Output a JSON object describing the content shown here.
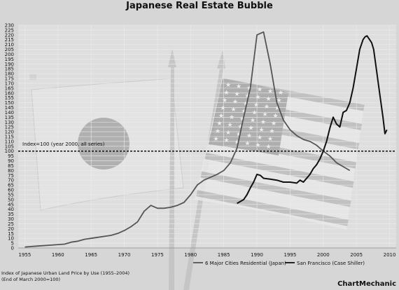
{
  "chart_data": {
    "type": "line",
    "title": "Japanese Real Estate Bubble",
    "xlim": [
      1954,
      2011
    ],
    "ylim": [
      0,
      230
    ],
    "x_ticks": [
      1955,
      1960,
      1965,
      1970,
      1975,
      1980,
      1985,
      1990,
      1995,
      2000,
      2005,
      2010
    ],
    "y_ticks": [
      0,
      5,
      10,
      15,
      20,
      25,
      30,
      35,
      40,
      45,
      50,
      55,
      60,
      65,
      70,
      75,
      80,
      85,
      90,
      95,
      100,
      105,
      110,
      115,
      120,
      125,
      130,
      135,
      140,
      145,
      150,
      155,
      160,
      165,
      170,
      175,
      180,
      185,
      190,
      195,
      200,
      205,
      210,
      215,
      220,
      225,
      230
    ],
    "grid": true,
    "reference_line": {
      "y": 100,
      "label": "Index=100 (year 2000, all series)"
    },
    "legend_position": "bottom",
    "series": [
      {
        "name": "6 Major Cities Residential (Japan)",
        "color": "#555555",
        "x": [
          1955,
          1957,
          1959,
          1961,
          1962,
          1963,
          1964,
          1965,
          1966,
          1967,
          1968,
          1969,
          1970,
          1971,
          1972,
          1973,
          1974,
          1975,
          1976,
          1977,
          1978,
          1979,
          1980,
          1981,
          1982,
          1983,
          1984,
          1985,
          1986,
          1987,
          1988,
          1989,
          1990,
          1991,
          1992,
          1993,
          1994,
          1995,
          1996,
          1997,
          1998,
          1999,
          2000,
          2001,
          2002,
          2003,
          2004
        ],
        "y": [
          1,
          2,
          3,
          4,
          6,
          7,
          9,
          10,
          11,
          12,
          13,
          15,
          18,
          22,
          27,
          38,
          44,
          41,
          41,
          42,
          44,
          47,
          55,
          65,
          70,
          73,
          76,
          80,
          88,
          103,
          135,
          165,
          220,
          223,
          190,
          150,
          132,
          122,
          116,
          112,
          110,
          106,
          100,
          95,
          88,
          84,
          80
        ]
      },
      {
        "name": "San Francisco (Case Shiller)",
        "color": "#111111",
        "x": [
          1987,
          1988,
          1988.5,
          1989,
          1989.5,
          1990,
          1990.5,
          1991,
          1992,
          1993,
          1994,
          1995,
          1996,
          1996.5,
          1997,
          1997.5,
          1998,
          1998.5,
          1999,
          1999.5,
          2000,
          2000.5,
          2001,
          2001.5,
          2002,
          2002.5,
          2003,
          2003.5,
          2004,
          2004.5,
          2005,
          2005.5,
          2006,
          2006.3,
          2006.6,
          2007,
          2007.3,
          2007.6,
          2008,
          2008.5,
          2009,
          2009.3,
          2009.6
        ],
        "y": [
          46,
          50,
          55,
          62,
          68,
          76,
          75,
          72,
          71,
          70,
          68,
          68,
          67,
          70,
          68,
          72,
          76,
          82,
          86,
          92,
          100,
          110,
          124,
          135,
          128,
          125,
          140,
          142,
          150,
          165,
          185,
          205,
          215,
          218,
          219,
          215,
          212,
          205,
          185,
          160,
          135,
          118,
          122
        ]
      }
    ],
    "source_note": [
      "Index of Japanese Urban Land Price by Use (1955–2004)",
      "(End of March 2000=100)"
    ],
    "logo": "ChartMechanic"
  }
}
